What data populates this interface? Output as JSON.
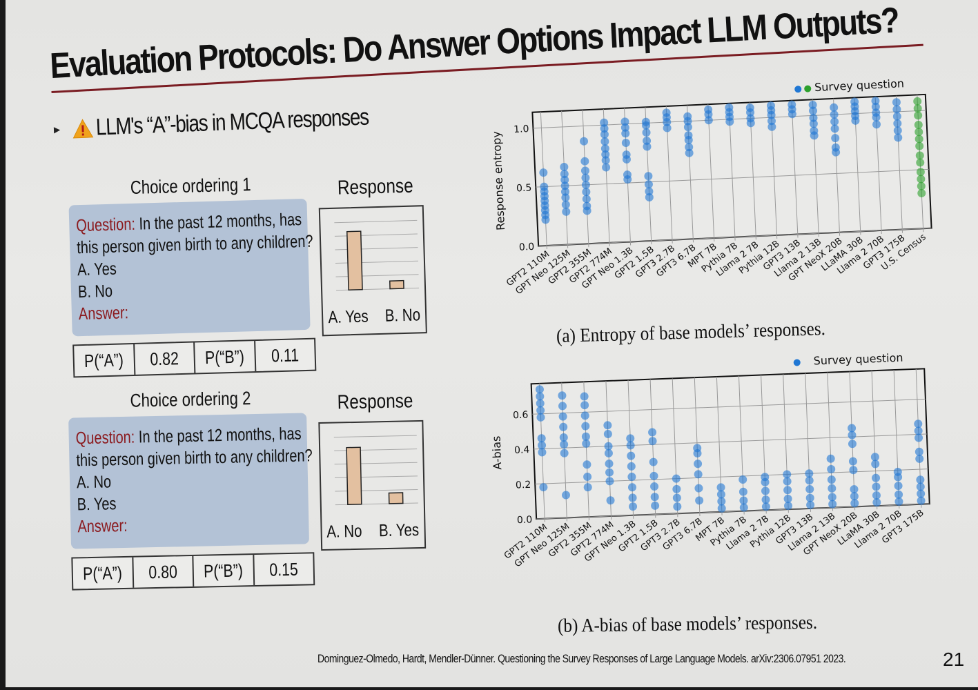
{
  "slide": {
    "title": "Evaluation Protocols: Do Answer Options Impact LLM Outputs?",
    "bullet": {
      "icon": "warning-icon",
      "text": "LLM's “A”-bias in MCQA responses"
    },
    "orderings": [
      {
        "title": "Choice ordering 1",
        "question_label": "Question:",
        "question_text_1": " In the past 12 months, has",
        "question_text_2": "this person given birth to any children?",
        "option_a": "A. Yes",
        "option_b": "B. No",
        "answer_label": "Answer:",
        "p_a_label": "P(“A”)",
        "p_a_value": "0.82",
        "p_b_label": "P(“B”)",
        "p_b_value": "0.11",
        "response_title": "Response",
        "response_labels": [
          "A. Yes",
          "B. No"
        ],
        "response_values": [
          0.82,
          0.11
        ]
      },
      {
        "title": "Choice ordering 2",
        "question_label": "Question:",
        "question_text_1": " In the past 12 months, has",
        "question_text_2": "this person given birth to any children?",
        "option_a": "A. No",
        "option_b": "B. Yes",
        "answer_label": "Answer:",
        "p_a_label": "P(“A”)",
        "p_a_value": "0.80",
        "p_b_label": "P(“B”)",
        "p_b_value": "0.15",
        "response_title": "Response",
        "response_labels": [
          "A. No",
          "B. Yes"
        ],
        "response_values": [
          0.8,
          0.15
        ]
      }
    ],
    "captions": {
      "a": "(a)  Entropy of base models’ responses.",
      "b": "(b)  A-bias of base models’ responses."
    },
    "footer": "Dominguez-Olmedo, Hardt, Mendler-Dünner. Questioning the Survey Responses of Large Language Models. arXiv:2306.07951 2023.",
    "page_number": "21"
  },
  "colors": {
    "title_rule": "#7a1c22",
    "question_label": "#8b1a1e",
    "question_box": "#b3c2d6",
    "response_bar": "#e3c0a0",
    "model_points": "#1f77d4",
    "census_points": "#2ca02c"
  },
  "chart_data": [
    {
      "type": "scatter",
      "title": "",
      "xlabel": "",
      "ylabel": "Response entropy",
      "ylim": [
        0.0,
        1.1
      ],
      "yticks": [
        "0.0",
        "0.5",
        "1.0"
      ],
      "grid": true,
      "legend": {
        "label": "Survey question",
        "placement": "top-right",
        "markers": [
          "blue",
          "green"
        ]
      },
      "categories": [
        "GPT2 110M",
        "GPT Neo 125M",
        "GPT2 355M",
        "GPT2 774M",
        "GPT Neo 1.3B",
        "GPT2 1.5B",
        "GPT3 2.7B",
        "GPT3 6.7B",
        "MPT 7B",
        "Pythia 7B",
        "Llama 2 7B",
        "Pythia 12B",
        "GPT3 13B",
        "Llama 2 13B",
        "GPT NeoX 20B",
        "LLaMA 30B",
        "Llama 2 70B",
        "GPT3 175B",
        "U.S. Census"
      ],
      "series": [
        {
          "name": "GPT2 110M",
          "values": [
            0.22,
            0.26,
            0.3,
            0.34,
            0.38,
            0.42,
            0.46,
            0.5,
            0.62
          ]
        },
        {
          "name": "GPT Neo 125M",
          "values": [
            0.28,
            0.34,
            0.4,
            0.45,
            0.5,
            0.55,
            0.6,
            0.66
          ]
        },
        {
          "name": "GPT2 355M",
          "values": [
            0.28,
            0.32,
            0.38,
            0.44,
            0.5,
            0.56,
            0.62,
            0.7,
            0.87
          ]
        },
        {
          "name": "GPT2 774M",
          "values": [
            0.64,
            0.7,
            0.75,
            0.8,
            0.86,
            0.92,
            0.97,
            1.02
          ]
        },
        {
          "name": "GPT Neo 1.3B",
          "values": [
            0.53,
            0.57,
            0.7,
            0.74,
            0.84,
            0.92,
            0.97,
            1.02
          ]
        },
        {
          "name": "GPT2 1.5B",
          "values": [
            0.37,
            0.42,
            0.48,
            0.55,
            0.8,
            0.85,
            0.92,
            0.98,
            1.01
          ]
        },
        {
          "name": "GPT3 2.7B",
          "values": [
            0.95,
            1.0,
            1.04,
            1.08
          ]
        },
        {
          "name": "GPT3 6.7B",
          "values": [
            0.73,
            0.78,
            0.84,
            0.88,
            0.95,
            1.0,
            1.04
          ]
        },
        {
          "name": "MPT 7B",
          "values": [
            1.0,
            1.05,
            1.09
          ]
        },
        {
          "name": "Pythia 7B",
          "values": [
            0.98,
            1.02,
            1.06,
            1.1
          ]
        },
        {
          "name": "Llama 2 7B",
          "values": [
            0.96,
            1.0,
            1.05,
            1.09
          ]
        },
        {
          "name": "Pythia 12B",
          "values": [
            0.92,
            0.97,
            1.02,
            1.06,
            1.1
          ]
        },
        {
          "name": "GPT3 13B",
          "values": [
            1.02,
            1.06,
            1.1
          ]
        },
        {
          "name": "Llama 2 13B",
          "values": [
            0.83,
            0.87,
            0.93,
            0.98,
            1.04,
            1.09
          ]
        },
        {
          "name": "GPT NeoX 20B",
          "values": [
            0.68,
            0.72,
            0.8,
            0.88,
            0.94,
            1.0,
            1.06
          ]
        },
        {
          "name": "LLaMA 30B",
          "values": [
            0.94,
            0.98,
            1.02,
            1.06,
            1.1
          ]
        },
        {
          "name": "Llama 2 70B",
          "values": [
            0.9,
            0.96,
            1.0,
            1.05,
            1.1
          ]
        },
        {
          "name": "GPT3 175B",
          "values": [
            0.78,
            0.84,
            0.9,
            0.96,
            1.02,
            1.08
          ]
        },
        {
          "name": "U.S. Census",
          "values": [
            0.3,
            0.36,
            0.42,
            0.48,
            0.56,
            0.62,
            0.7,
            0.76,
            0.82,
            0.88,
            0.96,
            1.02,
            1.08
          ]
        }
      ]
    },
    {
      "type": "scatter",
      "title": "",
      "xlabel": "",
      "ylabel": "A-bias",
      "ylim": [
        0.0,
        0.75
      ],
      "yticks": [
        "0.0",
        "0.2",
        "0.4",
        "0.6"
      ],
      "grid": true,
      "legend": {
        "label": "Survey question",
        "placement": "top-right",
        "markers": [
          "blue"
        ]
      },
      "categories": [
        "GPT2 110M",
        "GPT Neo 125M",
        "GPT2 355M",
        "GPT2 774M",
        "GPT Neo 1.3B",
        "GPT2 1.5B",
        "GPT3 2.7B",
        "GPT3 6.7B",
        "MPT 7B",
        "Pythia 7B",
        "Llama 2 7B",
        "Pythia 12B",
        "GPT3 13B",
        "Llama 2 13B",
        "GPT NeoX 20B",
        "LLaMA 30B",
        "Llama 2 70B",
        "GPT3 175B"
      ],
      "series": [
        {
          "name": "GPT2 110M",
          "values": [
            0.18,
            0.38,
            0.42,
            0.46,
            0.58,
            0.62,
            0.66,
            0.7,
            0.74
          ]
        },
        {
          "name": "GPT Neo 125M",
          "values": [
            0.13,
            0.37,
            0.42,
            0.46,
            0.52,
            0.58,
            0.64,
            0.7
          ]
        },
        {
          "name": "GPT2 355M",
          "values": [
            0.17,
            0.23,
            0.3,
            0.42,
            0.46,
            0.52,
            0.58,
            0.64,
            0.69
          ]
        },
        {
          "name": "GPT2 774M",
          "values": [
            0.09,
            0.2,
            0.25,
            0.3,
            0.36,
            0.4,
            0.47,
            0.52
          ]
        },
        {
          "name": "GPT Neo 1.3B",
          "values": [
            0.05,
            0.1,
            0.16,
            0.22,
            0.28,
            0.34,
            0.4,
            0.44
          ]
        },
        {
          "name": "GPT2 1.5B",
          "values": [
            0.05,
            0.1,
            0.16,
            0.22,
            0.3,
            0.42,
            0.47
          ]
        },
        {
          "name": "GPT3 2.7B",
          "values": [
            0.04,
            0.09,
            0.14,
            0.2
          ]
        },
        {
          "name": "GPT3 6.7B",
          "values": [
            0.07,
            0.14,
            0.22,
            0.28,
            0.34,
            0.37
          ]
        },
        {
          "name": "MPT 7B",
          "values": [
            0.02,
            0.06,
            0.1,
            0.14
          ]
        },
        {
          "name": "Pythia 7B",
          "values": [
            0.02,
            0.06,
            0.11,
            0.18
          ]
        },
        {
          "name": "Llama 2 7B",
          "values": [
            0.02,
            0.06,
            0.11,
            0.16,
            0.19
          ]
        },
        {
          "name": "Pythia 12B",
          "values": [
            0.02,
            0.06,
            0.11,
            0.16,
            0.2
          ]
        },
        {
          "name": "GPT3 13B",
          "values": [
            0.02,
            0.06,
            0.11,
            0.16,
            0.2
          ]
        },
        {
          "name": "Llama 2 13B",
          "values": [
            0.02,
            0.06,
            0.11,
            0.16,
            0.22,
            0.28
          ]
        },
        {
          "name": "GPT NeoX 20B",
          "values": [
            0.02,
            0.06,
            0.1,
            0.21,
            0.26,
            0.36,
            0.41,
            0.45
          ]
        },
        {
          "name": "LLaMA 30B",
          "values": [
            0.02,
            0.06,
            0.11,
            0.16,
            0.24,
            0.28
          ]
        },
        {
          "name": "Llama 2 70B",
          "values": [
            0.02,
            0.06,
            0.11,
            0.16,
            0.19
          ]
        },
        {
          "name": "GPT3 175B",
          "values": [
            0.02,
            0.06,
            0.1,
            0.14,
            0.26,
            0.3,
            0.38,
            0.42,
            0.46
          ]
        }
      ]
    }
  ]
}
